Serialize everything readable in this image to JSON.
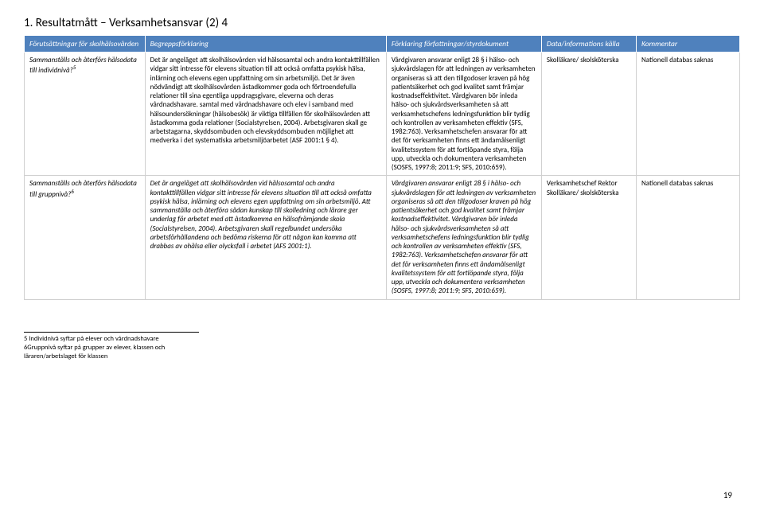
{
  "title": "1. Resultatmått – Verksamhetsansvar (2) 4",
  "headers": [
    "Förutsättningar för skolhälsovården",
    "Begreppsförklaring",
    "Förklaring författningar/styrdokument",
    "Data/informations källa",
    "Kommentar"
  ],
  "rows": [
    {
      "label": "Sammanställs och återförs hälsodata till individnivå?",
      "sup": "5",
      "begrepp": "Det är angeläget att skolhälsovården vid hälsosamtal och andra kontakttillfällen vidgar sitt intresse för elevens situation till att också omfatta psykisk hälsa, inlärning och elevens egen uppfattning om sin arbetsmiljö. Det är även nödvändigt att skolhälsovården åstadkommer goda och förtroendefulla relationer till sina egentliga uppdragsgivare, eleverna och deras vårdnadshavare. samtal med vårdnadshavare och elev i samband med hälsoundersökningar (hälsobesök) är viktiga tillfällen för skolhälsovården att åstadkomma goda relationer (Socialstyrelsen, 2004). Arbetsgivaren skall ge arbetstagarna, skyddsombuden och elevskyddsombuden möjlighet att medverka i det systematiska arbetsmiljöarbetet (ASF 2001:1 § 4).",
      "forklaring": "Vårdgivaren ansvarar enligt 28 § i hälso- och sjukvårdslagen för att ledningen av verksamheten organiseras så att den tillgodoser kraven på hög patientsäkerhet och god kvalitet samt främjar kostnadseffektivitet. Vårdgivaren bör inleda hälso- och sjukvårdsverksamheten så att verksamhetschefens ledningsfunktion blir tydlig och kontrollen av verksamheten effektiv (SFS, 1982:763). Verksamhetschefen ansvarar för att det för verksamheten finns ett ändamålsenligt kvalitetssystem för att fortlöpande styra, följa upp, utveckla och dokumentera verksamheten (SOSFS, 1997:8; 2011:9; SFS, 2010:659).",
      "data": "Skolläkare/ skolsköterska",
      "kommentar": "Nationell databas saknas"
    },
    {
      "label": "Sammanställs och återförs hälsodata till gruppnivå?",
      "sup": "6",
      "begrepp": "Det är angeläget att skolhälsovården vid hälsosamtal och andra kontakttillfällen vidgar sitt intresse för elevens situation till att också omfatta psykisk hälsa, inlärning och elevens egen uppfattning om sin arbetsmiljö. Att sammanställa och återföra sådan kunskap till skolledning och lärare ger underlag för arbetet med att åstadkomma en hälsofrämjande skola (Socialstyrelsen, 2004). Arbetsgivaren skall regelbundet undersöka arbetsförhållandena och bedöma riskerna för att någon kan komma att drabbas av ohälsa eller olycksfall i arbetet (AFS 2001:1).",
      "forklaring": "Vårdgivaren ansvarar enligt 28 § i hälso- och sjukvårdslagen för att ledningen av verksamheten organiseras så att den tillgodoser kraven på hög patientsäkerhet och god kvalitet samt främjar kostnadseffektivitet. Vårdgivaren bör inleda hälso- och sjukvårdsverksamheten så att verksamhetschefens ledningsfunktion blir tydlig och kontrollen av verksamheten effektiv (SFS, 1982:763). Verksamhetschefen ansvarar för att det för verksamheten finns ett ändamålsenligt kvalitetssystem för att fortlöpande styra, följa upp, utveckla och dokumentera verksamheten (SOSFS, 1997:8; 2011:9; SFS, 2010:659).",
      "data": "Verksamhetschef Rektor Skolläkare/ skolsköterska",
      "kommentar": "Nationell databas saknas"
    }
  ],
  "footnotes": [
    "5 Individnivå syftar på elever och vårdnadshavare",
    "6Gruppnivå syftar på grupper av elever, klassen och läraren/arbetslaget för klassen"
  ],
  "page_number": "19",
  "colors": {
    "header_bg": "#4f81bd",
    "header_text": "#ffffff",
    "body_text": "#000000",
    "border": "#d0d0d0"
  }
}
